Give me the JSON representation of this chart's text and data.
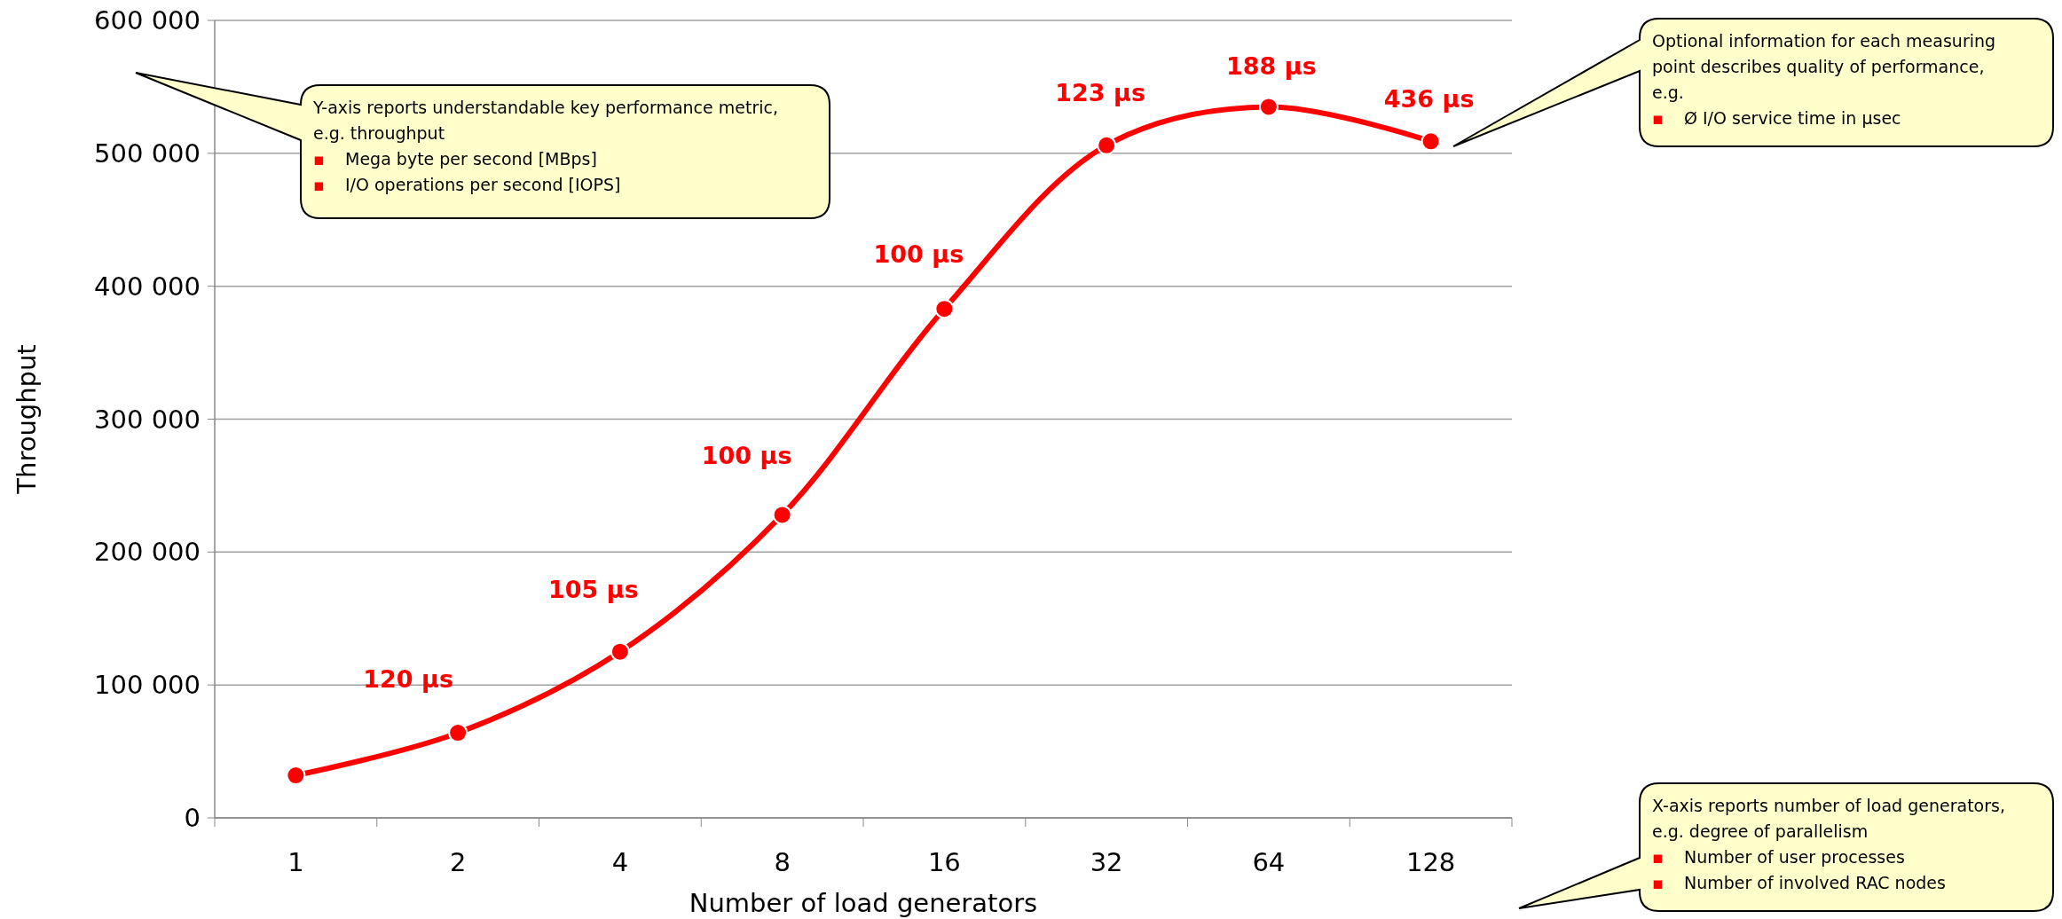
{
  "chart_data": {
    "type": "line",
    "xlabel": "Number of load generators",
    "ylabel": "Throughput",
    "categories": [
      "1",
      "2",
      "4",
      "8",
      "16",
      "32",
      "64",
      "128"
    ],
    "series": [
      {
        "color": "#ff0000",
        "values": [
          32000,
          64000,
          125000,
          228000,
          383000,
          506000,
          535000,
          509000
        ]
      }
    ],
    "ylim": [
      0,
      600000
    ],
    "yticks": [
      {
        "value": 0,
        "label": "0"
      },
      {
        "value": 100000,
        "label": "100 000"
      },
      {
        "value": 200000,
        "label": "200 000"
      },
      {
        "value": 300000,
        "label": "300 000"
      },
      {
        "value": 400000,
        "label": "400 000"
      },
      {
        "value": 500000,
        "label": "500 000"
      },
      {
        "value": 600000,
        "label": "600 000"
      }
    ],
    "grid": "y",
    "marker": "circle",
    "line_style": "solid",
    "annotations": [
      {
        "text": "120 µs",
        "x": "2",
        "y": 64000
      },
      {
        "text": "105 µs",
        "x": "4",
        "y": 125000
      },
      {
        "text": "100 µs",
        "x": "8",
        "y": 228000
      },
      {
        "text": "100 µs",
        "x": "16",
        "y": 383000
      },
      {
        "text": "123 µs",
        "x": "32",
        "y": 506000
      },
      {
        "text": "188 µs",
        "x": "64",
        "y": 535000
      },
      {
        "text": "436 µs",
        "x": "128",
        "y": 509000
      },
      "Y-axis reports understandable key performance metric,\ne.g. throughput\n▪ Mega byte per second [MBps]\n▪ I/O operations per second [IOPS]",
      "Optional  information for each measuring\npoint describes quality of performance,\ne.g.\n▪ Ø I/O service time in µsec",
      "X-axis reports number of load generators,\ne.g. degree of parallelism\n▪ Number of user processes\n▪ Number of involved RAC nodes"
    ]
  }
}
